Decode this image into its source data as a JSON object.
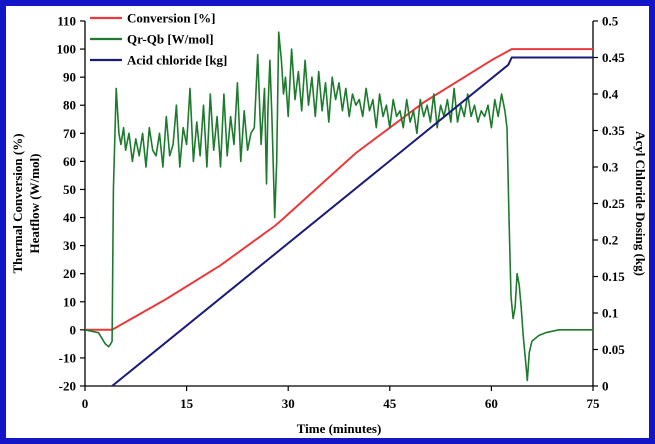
{
  "colors": {
    "frame": "#1515c8",
    "conversion": "#e83a3a",
    "heatflow": "#1e7a2e",
    "acid": "#1c1c78",
    "axis": "#000000"
  },
  "chart_data": {
    "type": "line",
    "xlabel": "Time (minutes)",
    "ylabel": "Thermal Conversion (%)",
    "ylabel_2": "Heatflow (W/mol)",
    "y2label": "Acyl Chloride Dosing (kg)",
    "xlim": [
      0,
      75
    ],
    "ylim": [
      -20,
      110
    ],
    "y2lim": [
      0,
      0.5
    ],
    "x_ticks": [
      "0",
      "15",
      "30",
      "45",
      "60",
      "75"
    ],
    "y_ticks": [
      "-20",
      "-10",
      "0",
      "10",
      "20",
      "30",
      "40",
      "50",
      "60",
      "70",
      "80",
      "90",
      "100",
      "110"
    ],
    "y2_ticks": [
      "0",
      "0.05",
      "0.1",
      "0.15",
      "0.2",
      "0.25",
      "0.3",
      "0.35",
      "0.4",
      "0.45",
      "0.5"
    ],
    "legend_position": "top-left",
    "series": [
      {
        "name": "Conversion [%]",
        "axis": "left",
        "color": "#e83a3a",
        "x": [
          0,
          4,
          12,
          20,
          28,
          29,
          40,
          50,
          60,
          63,
          64,
          75
        ],
        "y": [
          0,
          0,
          11,
          23,
          37,
          39,
          63,
          81,
          96,
          100,
          100,
          100
        ]
      },
      {
        "name": "Qr-Qb [W/mol]",
        "axis": "left",
        "color": "#1e7a2e",
        "x": [
          0,
          2,
          3,
          3.5,
          3.8,
          4,
          4.2,
          4.6,
          5,
          5.3,
          5.7,
          6,
          6.5,
          7,
          7.5,
          8,
          8.5,
          9,
          9.5,
          10,
          10.5,
          11,
          11.5,
          12,
          12.5,
          13,
          13.5,
          14,
          14.5,
          15,
          15.5,
          16,
          16.5,
          17,
          17.5,
          18,
          18.5,
          19,
          19.5,
          20,
          20.5,
          21,
          21.5,
          22,
          22.5,
          23,
          23.5,
          24,
          24.5,
          25,
          25.5,
          26,
          26.5,
          26.8,
          27,
          27.3,
          27.6,
          28,
          28.3,
          28.6,
          29,
          29.3,
          29.6,
          30,
          30.5,
          31,
          31.5,
          32,
          32.5,
          33,
          33.5,
          34,
          34.5,
          35,
          35.5,
          36,
          36.5,
          37,
          37.5,
          38,
          38.5,
          39,
          39.5,
          40,
          40.5,
          41,
          41.5,
          42,
          42.5,
          43,
          43.5,
          44,
          44.5,
          45,
          45.5,
          46,
          46.5,
          47,
          47.5,
          48,
          48.5,
          49,
          49.5,
          50,
          50.5,
          51,
          51.5,
          52,
          52.5,
          53,
          53.5,
          54,
          54.5,
          55,
          55.5,
          56,
          56.5,
          57,
          57.5,
          58,
          58.5,
          59,
          59.5,
          60,
          60.5,
          61,
          61.5,
          62,
          62.3,
          62.6,
          62.9,
          63.2,
          63.5,
          63.8,
          64.1,
          64.4,
          64.7,
          65,
          65.3,
          65.6,
          66,
          67,
          68,
          70,
          72,
          75
        ],
        "y": [
          0,
          -1,
          -5,
          -6,
          -5,
          -4,
          50,
          86,
          70,
          66,
          72,
          64,
          70,
          60,
          68,
          62,
          70,
          58,
          72,
          64,
          62,
          70,
          58,
          76,
          62,
          66,
          80,
          58,
          72,
          66,
          86,
          60,
          74,
          62,
          80,
          58,
          84,
          64,
          76,
          58,
          84,
          62,
          76,
          66,
          88,
          60,
          78,
          64,
          70,
          72,
          98,
          66,
          86,
          52,
          78,
          96,
          76,
          40,
          60,
          106,
          96,
          84,
          90,
          76,
          100,
          82,
          92,
          78,
          96,
          80,
          90,
          76,
          92,
          78,
          88,
          74,
          90,
          82,
          88,
          78,
          86,
          76,
          84,
          80,
          82,
          76,
          86,
          78,
          82,
          72,
          84,
          76,
          80,
          72,
          82,
          76,
          78,
          72,
          82,
          74,
          78,
          70,
          82,
          76,
          80,
          74,
          84,
          72,
          80,
          76,
          82,
          74,
          86,
          74,
          80,
          76,
          84,
          76,
          80,
          74,
          78,
          76,
          80,
          72,
          82,
          76,
          84,
          78,
          72,
          40,
          12,
          4,
          8,
          20,
          16,
          8,
          -2,
          -10,
          -18,
          -8,
          -4,
          -2,
          -1,
          0,
          0,
          0
        ]
      },
      {
        "name": "Acid chloride [kg]",
        "axis": "right",
        "color": "#1c1c78",
        "x": [
          4,
          62.5,
          63,
          75
        ],
        "y": [
          0,
          0.44,
          0.45,
          0.45
        ]
      }
    ]
  }
}
